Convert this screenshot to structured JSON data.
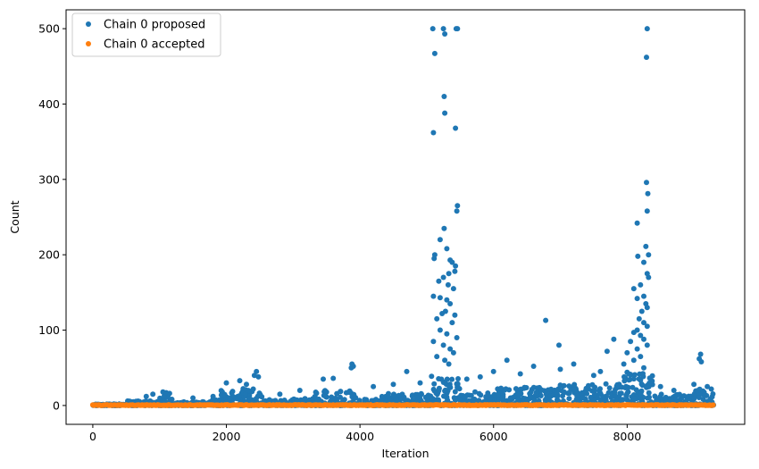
{
  "chart_data": {
    "type": "scatter",
    "xlabel": "Iteration",
    "ylabel": "Count",
    "xlim": [
      -400,
      9760
    ],
    "ylim": [
      -25,
      525
    ],
    "xticks": [
      0,
      2000,
      4000,
      6000,
      8000
    ],
    "yticks": [
      0,
      100,
      200,
      300,
      400,
      500
    ],
    "xtick_labels": [
      "0",
      "2000",
      "4000",
      "6000",
      "8000"
    ],
    "ytick_labels": [
      "0",
      "100",
      "200",
      "300",
      "400",
      "500"
    ],
    "grid": false,
    "legend_position": "top-left",
    "series": [
      {
        "name": "Chain 0 proposed",
        "color": "#1f77b4",
        "points": [
          [
            5090,
            500
          ],
          [
            5120,
            467
          ],
          [
            5100,
            362
          ],
          [
            5250,
            500
          ],
          [
            5270,
            493
          ],
          [
            5260,
            410
          ],
          [
            5270,
            388
          ],
          [
            5440,
            500
          ],
          [
            5460,
            500
          ],
          [
            5430,
            368
          ],
          [
            5460,
            265
          ],
          [
            5450,
            258
          ],
          [
            5260,
            235
          ],
          [
            5200,
            220
          ],
          [
            5300,
            208
          ],
          [
            5120,
            200
          ],
          [
            5110,
            195
          ],
          [
            5350,
            193
          ],
          [
            5380,
            190
          ],
          [
            5430,
            185
          ],
          [
            5420,
            178
          ],
          [
            5330,
            175
          ],
          [
            5250,
            170
          ],
          [
            5180,
            165
          ],
          [
            5320,
            160
          ],
          [
            5400,
            155
          ],
          [
            5100,
            145
          ],
          [
            5200,
            143
          ],
          [
            5300,
            140
          ],
          [
            5350,
            135
          ],
          [
            5280,
            125
          ],
          [
            5230,
            122
          ],
          [
            5420,
            120
          ],
          [
            5150,
            115
          ],
          [
            5380,
            110
          ],
          [
            5200,
            100
          ],
          [
            5300,
            95
          ],
          [
            5450,
            90
          ],
          [
            5100,
            85
          ],
          [
            5250,
            80
          ],
          [
            5350,
            75
          ],
          [
            5400,
            70
          ],
          [
            5150,
            65
          ],
          [
            5270,
            60
          ],
          [
            5330,
            55
          ],
          [
            8300,
            500
          ],
          [
            8290,
            462
          ],
          [
            8290,
            296
          ],
          [
            8310,
            281
          ],
          [
            8300,
            258
          ],
          [
            8150,
            242
          ],
          [
            8280,
            211
          ],
          [
            8320,
            200
          ],
          [
            8160,
            198
          ],
          [
            8250,
            190
          ],
          [
            8300,
            175
          ],
          [
            8320,
            170
          ],
          [
            8200,
            160
          ],
          [
            8100,
            155
          ],
          [
            8250,
            145
          ],
          [
            8150,
            142
          ],
          [
            8280,
            135
          ],
          [
            8300,
            130
          ],
          [
            8220,
            125
          ],
          [
            8180,
            115
          ],
          [
            8250,
            110
          ],
          [
            8300,
            105
          ],
          [
            8150,
            100
          ],
          [
            8100,
            97
          ],
          [
            8200,
            93
          ],
          [
            8250,
            88
          ],
          [
            8050,
            85
          ],
          [
            8300,
            80
          ],
          [
            8150,
            75
          ],
          [
            8000,
            70
          ],
          [
            8200,
            65
          ],
          [
            8100,
            60
          ],
          [
            7950,
            55
          ],
          [
            8250,
            50
          ],
          [
            6780,
            113
          ],
          [
            6980,
            80
          ],
          [
            7800,
            88
          ],
          [
            7700,
            72
          ],
          [
            6200,
            60
          ],
          [
            9100,
            68
          ],
          [
            9080,
            62
          ],
          [
            9110,
            58
          ],
          [
            7200,
            55
          ],
          [
            6600,
            52
          ],
          [
            3880,
            55
          ],
          [
            3900,
            52
          ],
          [
            3870,
            50
          ],
          [
            4700,
            45
          ],
          [
            2450,
            45
          ],
          [
            2420,
            40
          ],
          [
            2480,
            38
          ],
          [
            3450,
            35
          ],
          [
            3600,
            36
          ],
          [
            2200,
            33
          ],
          [
            2000,
            30
          ],
          [
            2300,
            28
          ],
          [
            1050,
            18
          ],
          [
            1100,
            17
          ],
          [
            1150,
            16
          ],
          [
            900,
            15
          ],
          [
            800,
            12
          ],
          [
            6000,
            45
          ],
          [
            6400,
            42
          ],
          [
            7000,
            48
          ],
          [
            7500,
            40
          ],
          [
            7600,
            45
          ],
          [
            5800,
            38
          ],
          [
            5600,
            35
          ],
          [
            4900,
            30
          ],
          [
            4500,
            28
          ],
          [
            4200,
            25
          ],
          [
            3100,
            20
          ],
          [
            2800,
            15
          ],
          [
            1500,
            10
          ],
          [
            1800,
            12
          ],
          [
            9200,
            25
          ],
          [
            9000,
            28
          ],
          [
            8700,
            20
          ],
          [
            8500,
            25
          ]
        ],
        "bands": [
          [
            0,
            500,
            0,
            2
          ],
          [
            500,
            1000,
            0,
            6
          ],
          [
            1000,
            1200,
            0,
            14
          ],
          [
            1200,
            1700,
            0,
            5
          ],
          [
            1700,
            1900,
            0,
            8
          ],
          [
            1900,
            2550,
            0,
            24
          ],
          [
            2550,
            3000,
            0,
            8
          ],
          [
            3000,
            3300,
            0,
            10
          ],
          [
            3300,
            3950,
            0,
            20
          ],
          [
            3950,
            4300,
            0,
            10
          ],
          [
            4300,
            5050,
            0,
            16
          ],
          [
            5050,
            5500,
            0,
            40
          ],
          [
            5500,
            6000,
            0,
            18
          ],
          [
            6000,
            6900,
            0,
            24
          ],
          [
            6900,
            7500,
            0,
            28
          ],
          [
            7500,
            7900,
            0,
            30
          ],
          [
            7900,
            8400,
            0,
            45
          ],
          [
            8400,
            9000,
            0,
            15
          ],
          [
            9000,
            9300,
            0,
            22
          ]
        ]
      },
      {
        "name": "Chain 0 accepted",
        "color": "#ff7f0e",
        "range": [
          0,
          9300
        ],
        "value_range": [
          0,
          1
        ]
      }
    ]
  }
}
